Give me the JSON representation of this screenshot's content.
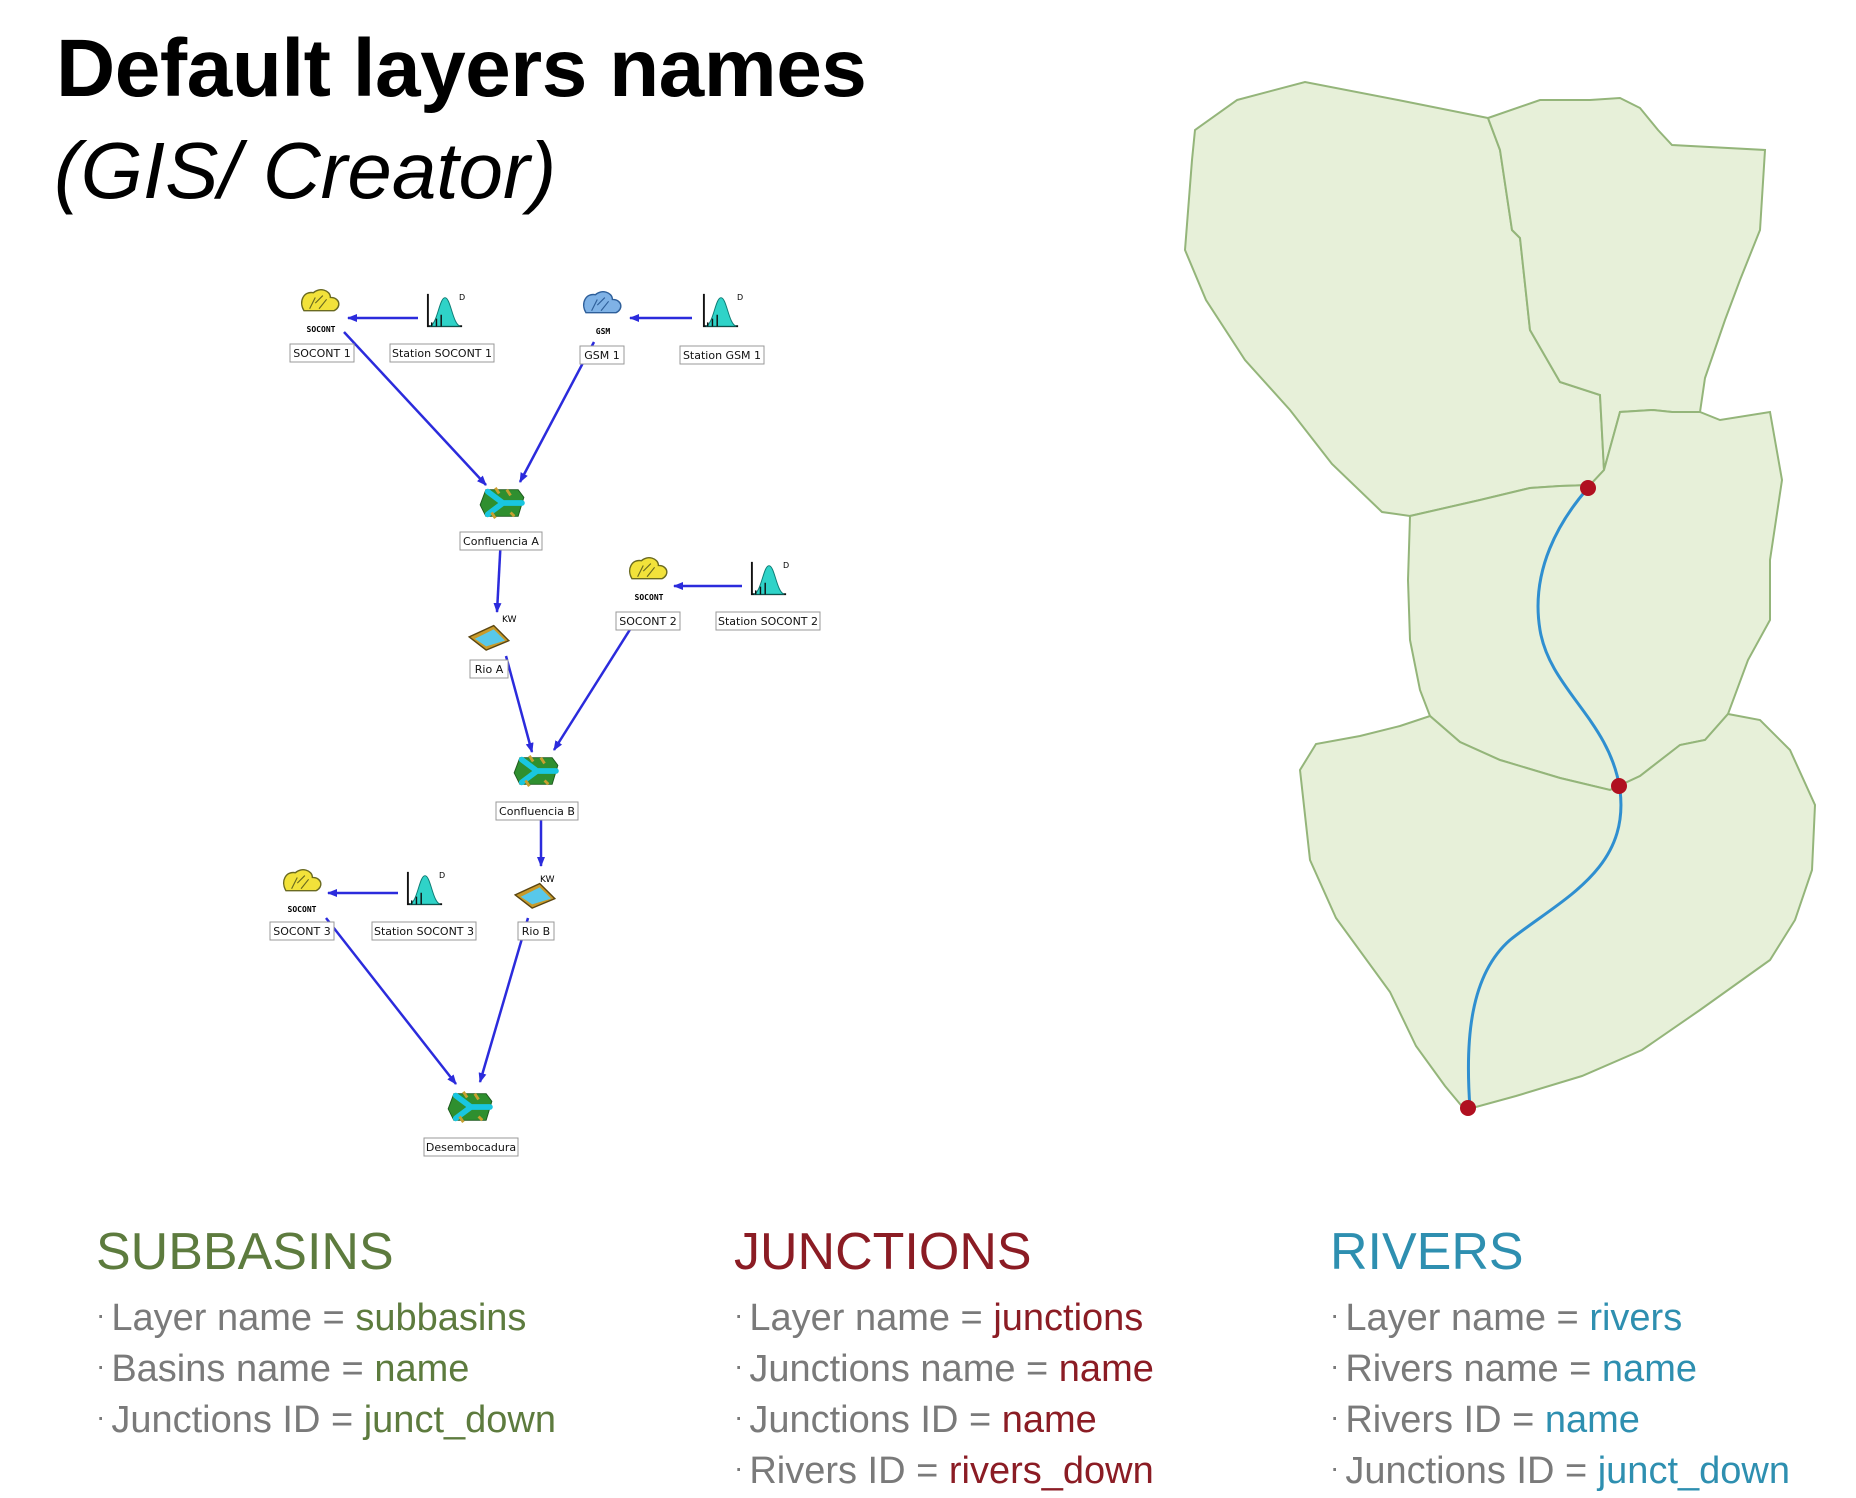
{
  "title": "Default layers names",
  "subtitle": "(GIS/ Creator)",
  "colors": {
    "subbasins": "#5d7b3e",
    "junctions": "#8b1c24",
    "rivers": "#2e8fb0",
    "arrow": "#2b2bdc",
    "basin_fill": "#e7f0d9",
    "basin_stroke": "#94b57a",
    "river_line": "#2f8fd0",
    "junction_dot": "#b01020"
  },
  "diagram": {
    "nodes": [
      {
        "id": "soc1",
        "label": "SOCONT 1",
        "icon": "socont-subbasin-icon",
        "icon_text": "SOCONT"
      },
      {
        "id": "st1",
        "label": "Station SOCONT 1",
        "icon": "station-chart-icon",
        "icon_text": "D"
      },
      {
        "id": "gsm1",
        "label": "GSM 1",
        "icon": "gsm-subbasin-icon",
        "icon_text": "GSM"
      },
      {
        "id": "stg1",
        "label": "Station GSM 1",
        "icon": "station-chart-icon",
        "icon_text": "D"
      },
      {
        "id": "confA",
        "label": "Confluencia A",
        "icon": "confluence-icon"
      },
      {
        "id": "soc2",
        "label": "SOCONT 2",
        "icon": "socont-subbasin-icon",
        "icon_text": "SOCONT"
      },
      {
        "id": "st2",
        "label": "Station SOCONT 2",
        "icon": "station-chart-icon",
        "icon_text": "D"
      },
      {
        "id": "rioA",
        "label": "Rio A",
        "icon": "kw-river-icon",
        "icon_text": "KW"
      },
      {
        "id": "confB",
        "label": "Confluencia B",
        "icon": "confluence-icon"
      },
      {
        "id": "soc3",
        "label": "SOCONT 3",
        "icon": "socont-subbasin-icon",
        "icon_text": "SOCONT"
      },
      {
        "id": "st3",
        "label": "Station SOCONT 3",
        "icon": "station-chart-icon",
        "icon_text": "D"
      },
      {
        "id": "rioB",
        "label": "Rio B",
        "icon": "kw-river-icon",
        "icon_text": "KW"
      },
      {
        "id": "des",
        "label": "Desembocadura",
        "icon": "confluence-icon"
      }
    ]
  },
  "legend": {
    "subbasins": {
      "heading": "SUBBASINS",
      "lines": [
        {
          "label": "Layer name = ",
          "value": "subbasins"
        },
        {
          "label": "Basins name = ",
          "value": "name"
        },
        {
          "label": "Junctions ID = ",
          "value": "junct_down"
        }
      ]
    },
    "junctions": {
      "heading": "JUNCTIONS",
      "lines": [
        {
          "label": "Layer name = ",
          "value": "junctions"
        },
        {
          "label": "Junctions name = ",
          "value": "name"
        },
        {
          "label": "Junctions ID = ",
          "value": "name"
        },
        {
          "label": "Rivers ID = ",
          "value": "rivers_down"
        }
      ]
    },
    "rivers": {
      "heading": "RIVERS",
      "lines": [
        {
          "label": "Layer name = ",
          "value": "rivers"
        },
        {
          "label": "Rivers name = ",
          "value": "name"
        },
        {
          "label": "Rivers ID = ",
          "value": "name"
        },
        {
          "label": "Junctions ID = ",
          "value": "junct_down"
        }
      ]
    }
  }
}
